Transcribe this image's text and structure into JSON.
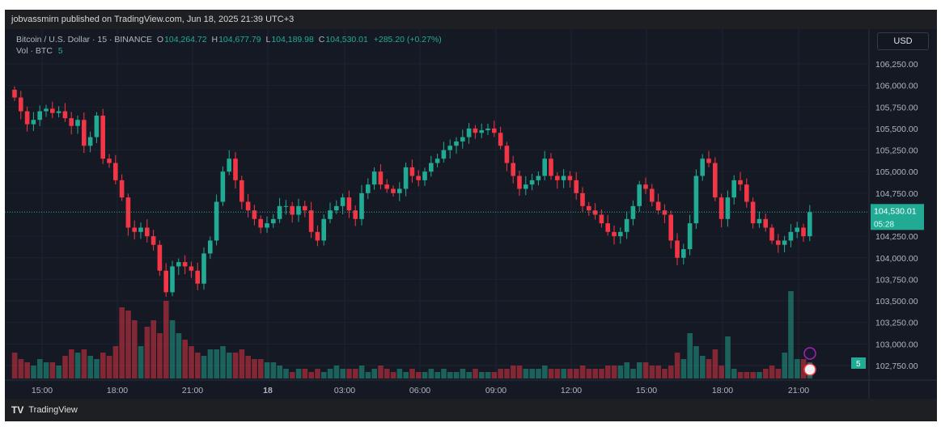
{
  "header": {
    "published": "jobvassmirn published on TradingView.com, Jun 18, 2025 21:39 UTC+3"
  },
  "legend": {
    "symbol": "Bitcoin / U.S. Dollar · 15 · BINANCE",
    "o_label": "O",
    "o": "104,264.72",
    "h_label": "H",
    "h": "104,677.79",
    "l_label": "L",
    "l": "104,189.98",
    "c_label": "C",
    "c": "104,530.01",
    "change": "+285.20 (+0.27%)",
    "vol_label": "Vol · BTC",
    "vol": "5"
  },
  "currency_button": "USD",
  "price_axis": {
    "ticks": [
      "106,250.00",
      "106,000.00",
      "105,750.00",
      "105,500.00",
      "105,250.00",
      "105,000.00",
      "104,750.00",
      "104,250.00",
      "104,000.00",
      "103,750.00",
      "103,500.00",
      "103,250.00",
      "103,000.00",
      "102,750.00"
    ],
    "last_price": "104,530.01",
    "countdown": "05:28",
    "volume_badge": "5"
  },
  "time_axis": {
    "ticks": [
      "15:00",
      "18:00",
      "21:00",
      "18",
      "03:00",
      "06:00",
      "09:00",
      "12:00",
      "15:00",
      "18:00",
      "21:00"
    ]
  },
  "footer": {
    "brand": "TradingView"
  },
  "colors": {
    "up": "#22ab94",
    "down": "#f23645",
    "background": "#151924"
  },
  "chart_data": {
    "type": "candlestick",
    "interval": "15",
    "ylim": [
      102650,
      106400
    ],
    "first_open": 105950,
    "closes": [
      105860,
      105700,
      105550,
      105600,
      105700,
      105730,
      105680,
      105700,
      105620,
      105530,
      105600,
      105300,
      105400,
      105650,
      105150,
      105100,
      104900,
      104700,
      104350,
      104300,
      104350,
      104250,
      104150,
      103850,
      103600,
      103900,
      103950,
      103900,
      103850,
      103700,
      104050,
      104200,
      104650,
      105000,
      105150,
      104900,
      104650,
      104550,
      104450,
      104350,
      104400,
      104450,
      104600,
      104600,
      104500,
      104600,
      104550,
      104300,
      104200,
      104450,
      104550,
      104600,
      104700,
      104550,
      104450,
      104750,
      104850,
      105000,
      104850,
      104800,
      104750,
      104800,
      105050,
      104950,
      104900,
      105000,
      105100,
      105150,
      105250,
      105300,
      105350,
      105400,
      105500,
      105450,
      105480,
      105500,
      105450,
      105300,
      105100,
      104950,
      104800,
      104850,
      104900,
      104950,
      105150,
      104950,
      104900,
      104950,
      104900,
      104750,
      104600,
      104550,
      104500,
      104400,
      104300,
      104250,
      104300,
      104450,
      104600,
      104850,
      104800,
      104650,
      104550,
      104500,
      104200,
      104000,
      104100,
      104400,
      104950,
      105150,
      105100,
      104700,
      104450,
      104700,
      104900,
      104850,
      104650,
      104400,
      104450,
      104350,
      104200,
      104150,
      104200,
      104300,
      104350,
      104250,
      104530.01
    ],
    "volumes": [
      8,
      6,
      5,
      4,
      6,
      5,
      5,
      4,
      7,
      9,
      8,
      9,
      7,
      6,
      8,
      7,
      10,
      22,
      21,
      18,
      10,
      16,
      18,
      14,
      24,
      18,
      14,
      12,
      10,
      8,
      7,
      9,
      9,
      10,
      8,
      8,
      9,
      7,
      6,
      6,
      5,
      5,
      4,
      3,
      2,
      3,
      3,
      2,
      3,
      2,
      3,
      4,
      3,
      3,
      3,
      4,
      2,
      3,
      4,
      3,
      2,
      3,
      2,
      3,
      2,
      2,
      3,
      2,
      3,
      2,
      2,
      3,
      2,
      3,
      2,
      2,
      2,
      3,
      3,
      4,
      4,
      3,
      3,
      3,
      4,
      3,
      3,
      3,
      3,
      3,
      4,
      3,
      3,
      3,
      4,
      4,
      4,
      5,
      3,
      5,
      5,
      4,
      4,
      3,
      4,
      8,
      6,
      14,
      10,
      7,
      6,
      9,
      4,
      13,
      3,
      2,
      2,
      2,
      2,
      3,
      4,
      3,
      8,
      27,
      6,
      6,
      5
    ]
  }
}
